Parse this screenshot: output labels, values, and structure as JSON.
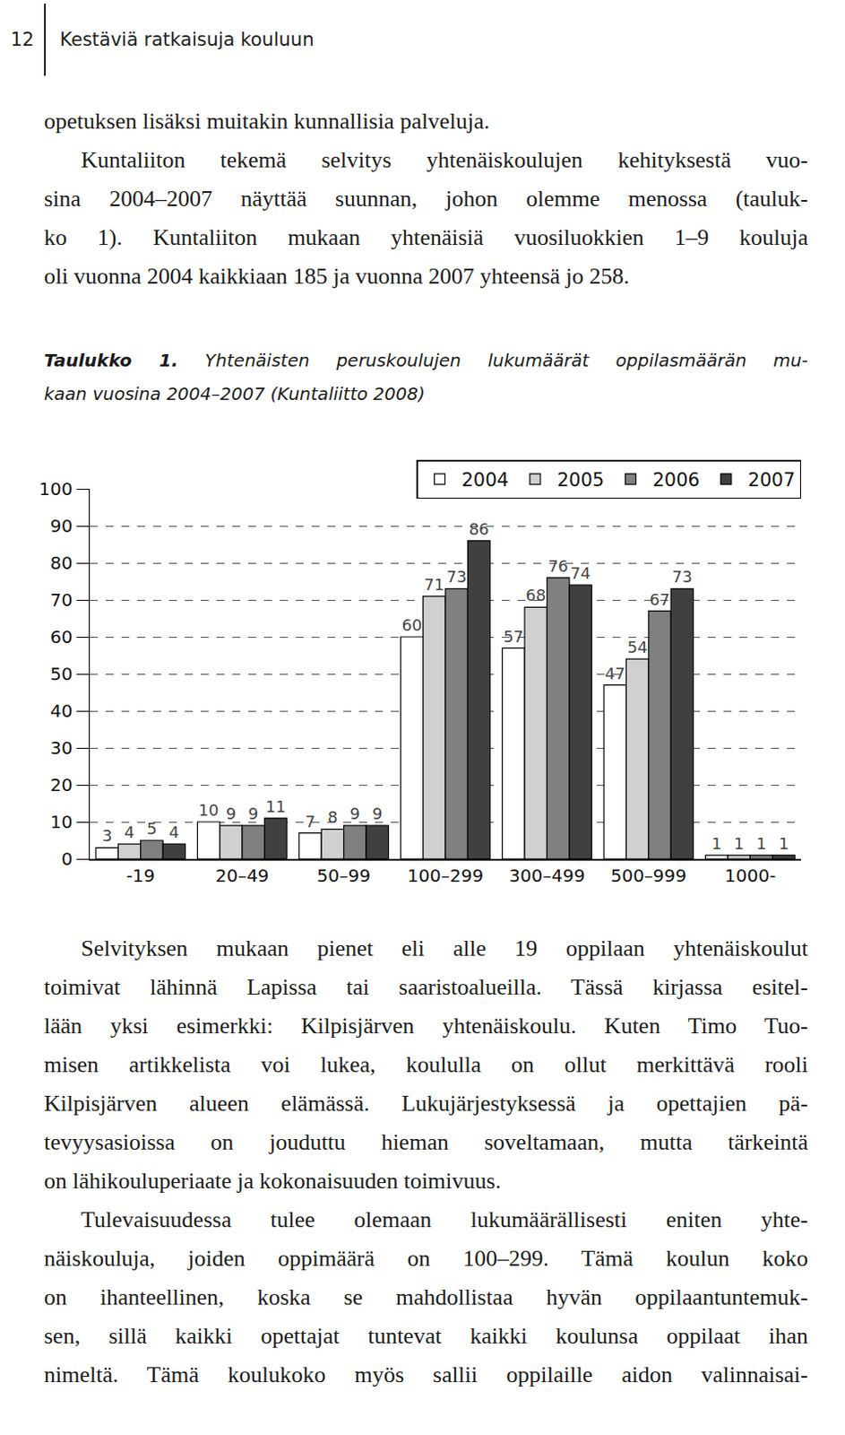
{
  "header": {
    "page": "12",
    "title": "Kestäviä ratkaisuja kouluun"
  },
  "body_before": [
    {
      "lines": [
        "opetuksen lisäksi muitakin kunnallisia palveluja."
      ]
    },
    {
      "lines": [
        "Kuntaliiton tekemä selvitys yhtenäiskoulujen kehityksestä vuo-",
        "sina 2004–2007 näyttää suunnan, johon olemme menossa (tauluk-",
        "ko 1). Kuntaliiton mukaan yhtenäisiä vuosiluokkien 1–9 kouluja",
        "oli vuonna 2004 kaikkiaan 185 ja vuonna 2007 yhteensä jo 258."
      ]
    }
  ],
  "caption": {
    "label": "Taulukko 1.",
    "lines": [
      "Yhtenäisten peruskoulujen lukumäärät oppilasmäärän mu-",
      "kaan vuosina 2004–2007 (Kuntaliitto 2008)"
    ]
  },
  "chart_data": {
    "type": "bar",
    "categories": [
      "-19",
      "20–49",
      "50–99",
      "100–299",
      "300–499",
      "500–999",
      "1000-"
    ],
    "series": [
      {
        "name": "2004",
        "color": "#ffffff",
        "values": [
          3,
          10,
          7,
          60,
          57,
          47,
          1
        ]
      },
      {
        "name": "2005",
        "color": "#d0d0d0",
        "values": [
          4,
          9,
          8,
          71,
          68,
          54,
          1
        ]
      },
      {
        "name": "2006",
        "color": "#808080",
        "values": [
          5,
          9,
          9,
          73,
          76,
          67,
          1
        ]
      },
      {
        "name": "2007",
        "color": "#404040",
        "values": [
          4,
          11,
          9,
          86,
          74,
          73,
          1
        ]
      }
    ],
    "ylim": [
      0,
      100
    ],
    "yticks": [
      0,
      10,
      20,
      30,
      40,
      50,
      60,
      70,
      80,
      90,
      100
    ],
    "grid": true,
    "legend": "top right",
    "data_labels": true
  },
  "body_after": [
    {
      "lines": [
        "Selvityksen mukaan pienet eli alle 19 oppilaan yhtenäiskoulut",
        "toimivat lähinnä Lapissa tai saaristoalueilla. Tässä kirjassa esitel-",
        "lään yksi esimerkki: Kilpisjärven yhtenäiskoulu. Kuten Timo Tuo-",
        "misen artikkelista voi lukea, koululla on ollut merkittävä rooli",
        "Kilpisjärven alueen elämässä. Lukujärjestyksessä ja opettajien pä-",
        "tevyysasioissa on jouduttu hieman soveltamaan, mutta tärkeintä",
        "on lähikouluperiaate ja kokonaisuuden toimivuus."
      ]
    },
    {
      "lines": [
        "Tulevaisuudessa tulee olemaan lukumäärällisesti eniten yhte-",
        "näiskouluja, joiden oppimäärä on 100–299. Tämä koulun koko",
        "on ihanteellinen, koska se mahdollistaa hyvän oppilaantuntemuk-",
        "sen, sillä kaikki opettajat tuntevat kaikki koulunsa oppilaat ihan",
        "nimeltä. Tämä koulukoko myös sallii oppilaille aidon valinnaisai-"
      ]
    }
  ]
}
